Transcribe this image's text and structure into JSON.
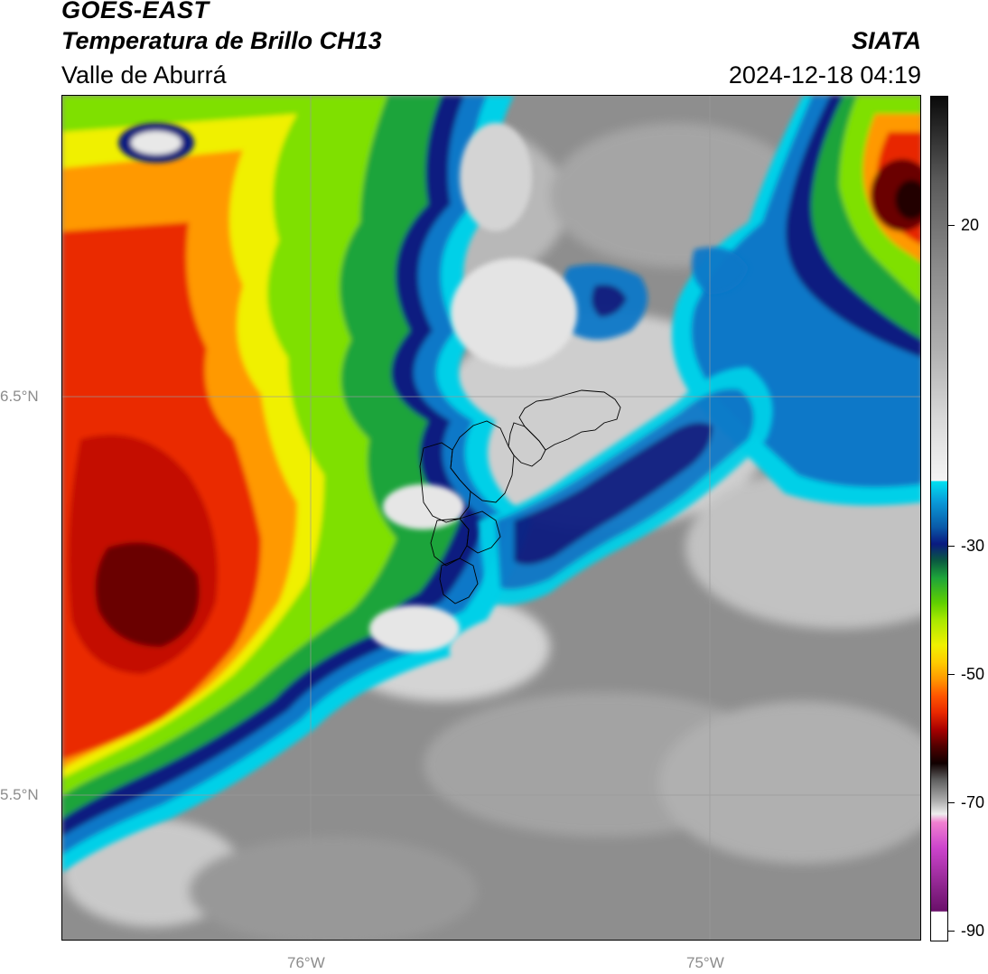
{
  "header": {
    "satellite": "GOES-EAST",
    "product": "Temperatura de Brillo CH13",
    "region": "Valle de Aburrá",
    "agency": "SIATA",
    "datetime": "2024-12-18 04:19"
  },
  "axes": {
    "lat_labels": [
      "6.5°N",
      "5.5°N"
    ],
    "lon_labels": [
      "76°W",
      "75°W"
    ]
  },
  "colorbar": {
    "tick_labels": [
      "20",
      "-30",
      "-50",
      "-70",
      "-90"
    ],
    "vmin": -90,
    "vmax": 40
  },
  "colors": {
    "warm_gray": "#8a8a8a",
    "light_gray": "#d8d8d8",
    "cyan": "#00d4e8",
    "blue": "#0a70c0",
    "navy": "#0a1a80",
    "green": "#2ab52a",
    "lime": "#8fe000",
    "yellow": "#f0f000",
    "orange": "#ff9900",
    "red": "#e82800",
    "dark_red": "#8a0000",
    "black": "#200000",
    "magenta": "#cc44cc"
  }
}
